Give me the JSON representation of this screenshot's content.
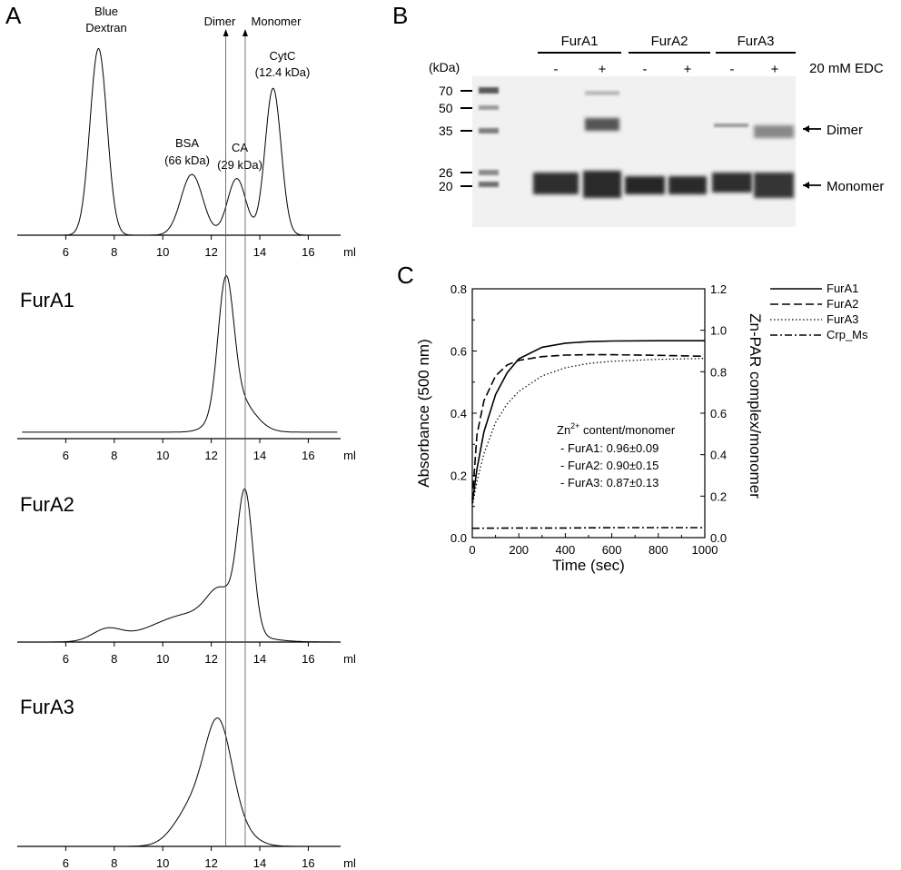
{
  "panels": {
    "a": "A",
    "b": "B",
    "c": "C"
  },
  "sec": {
    "x_unit": "ml",
    "marker_dimer": "Dimer",
    "marker_monomer": "Monomer",
    "marker_dimer_x": 12.6,
    "marker_monomer_x": 13.4,
    "standards": [
      {
        "id": "bd",
        "line1": "Blue",
        "line2": "Dextran"
      },
      {
        "id": "bsa",
        "line1": "BSA",
        "line2": "(66 kDa)"
      },
      {
        "id": "ca",
        "line1": "CA",
        "line2": "(29 kDa)"
      },
      {
        "id": "cytc",
        "line1": "CytC",
        "line2": "(12.4 kDa)"
      }
    ]
  },
  "gel": {
    "kda_label": "(kDa)",
    "markers": [
      "70",
      "50",
      "35",
      "26",
      "20"
    ],
    "groups": [
      "FurA1",
      "FurA2",
      "FurA3"
    ],
    "lane_signs": [
      "-",
      "+",
      "-",
      "+",
      "-",
      "+"
    ],
    "edc_label": "20 mM EDC",
    "dimer_label": "Dimer",
    "monomer_label": "Monomer"
  },
  "annotation": {
    "title_prefix": "Zn",
    "title_sup": "2+",
    "title_suffix": " content/monomer",
    "lines": [
      "- FurA1: 0.96±0.09",
      "- FurA2: 0.90±0.15",
      "- FurA3: 0.87±0.13"
    ]
  },
  "chart_data": [
    {
      "type": "line",
      "id": "standards",
      "xlabel": "ml",
      "x_ticks": [
        6,
        8,
        10,
        12,
        14,
        16
      ],
      "xlim": [
        4.0,
        17.2
      ],
      "series": [
        {
          "peaks": [
            {
              "center": 7.35,
              "height": 0.89,
              "width": 0.35
            },
            {
              "center": 11.2,
              "height": 0.29,
              "width": 0.45
            },
            {
              "center": 13.05,
              "height": 0.27,
              "width": 0.38
            },
            {
              "center": 14.55,
              "height": 0.7,
              "width": 0.33
            }
          ],
          "baseline": 0.0
        }
      ]
    },
    {
      "type": "line",
      "id": "FurA1",
      "title": "FurA1",
      "xlabel": "ml",
      "x_ticks": [
        6,
        8,
        10,
        12,
        14,
        16
      ],
      "xlim": [
        4.0,
        17.2
      ],
      "series": [
        {
          "peaks": [
            {
              "center": 12.6,
              "height": 0.78,
              "width": 0.32
            },
            {
              "center": 13.0,
              "height": 0.22,
              "width": 0.7
            }
          ],
          "baseline": 0.04
        }
      ]
    },
    {
      "type": "line",
      "id": "FurA2",
      "title": "FurA2",
      "xlabel": "ml",
      "x_ticks": [
        6,
        8,
        10,
        12,
        14,
        16
      ],
      "xlim": [
        4.0,
        17.2
      ],
      "series": [
        {
          "peaks": [
            {
              "center": 13.4,
              "height": 0.82,
              "width": 0.32
            },
            {
              "center": 7.7,
              "height": 0.07,
              "width": 0.6
            },
            {
              "center": 11.2,
              "height": 0.17,
              "width": 1.6
            },
            {
              "center": 12.4,
              "height": 0.2,
              "width": 0.55
            }
          ],
          "baseline": 0.0
        }
      ]
    },
    {
      "type": "line",
      "id": "FurA3",
      "title": "FurA3",
      "xlabel": "ml",
      "x_ticks": [
        6,
        8,
        10,
        12,
        14,
        16
      ],
      "xlim": [
        4.0,
        17.2
      ],
      "series": [
        {
          "peaks": [
            {
              "center": 12.3,
              "height": 0.62,
              "width": 0.55
            },
            {
              "center": 11.3,
              "height": 0.25,
              "width": 0.75
            },
            {
              "center": 13.0,
              "height": 0.1,
              "width": 0.7
            }
          ],
          "baseline": 0.0
        }
      ]
    },
    {
      "type": "line",
      "id": "zinc",
      "xlabel": "Time (sec)",
      "ylabel": "Absorbance (500 nm)",
      "y2label": "Zn-PAR complex/monomer",
      "xlim": [
        0,
        1000
      ],
      "ylim": [
        0,
        0.8
      ],
      "y2lim": [
        0,
        1.2
      ],
      "x_ticks": [
        0,
        200,
        400,
        600,
        800,
        1000
      ],
      "y_ticks": [
        "0.0",
        "0.2",
        "0.4",
        "0.6",
        "0.8"
      ],
      "y2_ticks": [
        "0.0",
        "0.2",
        "0.4",
        "0.6",
        "0.8",
        "1.0",
        "1.2"
      ],
      "legend_position": "top-right",
      "series": [
        {
          "name": "FurA1",
          "style": "solid",
          "x": [
            0,
            20,
            50,
            100,
            150,
            200,
            300,
            400,
            500,
            600,
            800,
            1000
          ],
          "y": [
            0.11,
            0.22,
            0.34,
            0.46,
            0.53,
            0.575,
            0.612,
            0.625,
            0.63,
            0.632,
            0.633,
            0.633
          ]
        },
        {
          "name": "FurA2",
          "style": "dashed",
          "x": [
            0,
            20,
            50,
            100,
            150,
            200,
            300,
            400,
            500,
            600,
            800,
            1000
          ],
          "y": [
            0.12,
            0.33,
            0.44,
            0.52,
            0.555,
            0.57,
            0.582,
            0.587,
            0.588,
            0.588,
            0.586,
            0.583
          ]
        },
        {
          "name": "FurA3",
          "style": "dotted",
          "x": [
            0,
            20,
            50,
            100,
            150,
            200,
            300,
            400,
            500,
            600,
            800,
            1000
          ],
          "y": [
            0.1,
            0.18,
            0.27,
            0.37,
            0.43,
            0.47,
            0.52,
            0.546,
            0.56,
            0.567,
            0.573,
            0.576
          ]
        },
        {
          "name": "Crp_Ms",
          "style": "dashdot",
          "x": [
            0,
            200,
            400,
            600,
            800,
            1000
          ],
          "y": [
            0.03,
            0.031,
            0.031,
            0.032,
            0.032,
            0.032
          ]
        }
      ]
    }
  ]
}
